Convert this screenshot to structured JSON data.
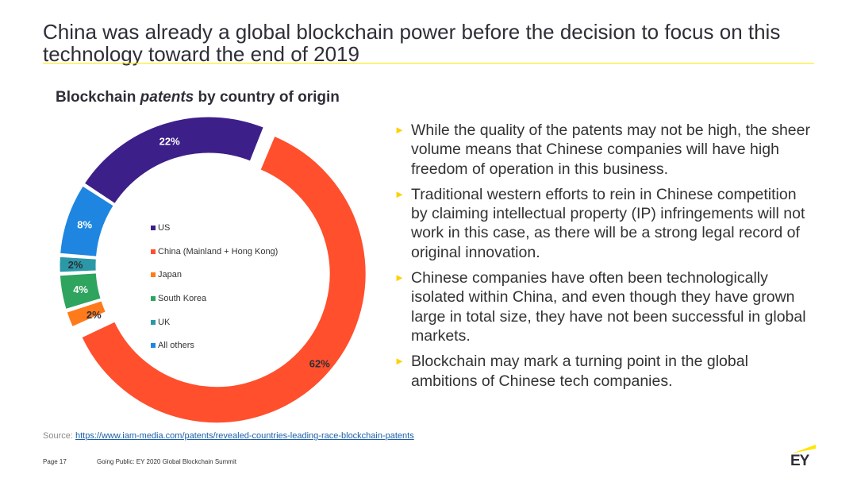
{
  "slide": {
    "title": "China was already a global blockchain power before the decision to focus on this technology toward the end of 2019",
    "subtitle_pre": "Blockchain ",
    "subtitle_em": "patents",
    "subtitle_post": " by country of origin"
  },
  "chart_data": {
    "type": "pie",
    "variant": "donut",
    "title": "Blockchain patents by country of origin",
    "legend_position": "center",
    "series": [
      {
        "name": "US",
        "value": 22,
        "label": "22%",
        "color": "#3d1f8a"
      },
      {
        "name": "China (Mainland + Hong Kong)",
        "value": 62,
        "label": "62%",
        "color": "#ff4f2d"
      },
      {
        "name": "Japan",
        "value": 2,
        "label": "2%",
        "color": "#ff7a1a"
      },
      {
        "name": "South Korea",
        "value": 4,
        "label": "4%",
        "color": "#2ea45f"
      },
      {
        "name": "UK",
        "value": 2,
        "label": "2%",
        "color": "#2b98a8"
      },
      {
        "name": "All others",
        "value": 8,
        "label": "8%",
        "color": "#1e86e0"
      }
    ]
  },
  "bullets": [
    "While the quality of the patents may not be high, the sheer volume means that Chinese companies will have high freedom of operation in this business.",
    "Traditional western efforts to rein in Chinese competition by claiming intellectual property (IP) infringements will not work in this case, as there will be a strong legal record of original innovation.",
    "Chinese companies have often been technologically isolated within China, and even though they have grown large in total size, they have not been successful in global markets.",
    "Blockchain may mark a turning point in the global ambitions of Chinese tech companies."
  ],
  "bullet_glyph": "►",
  "source": {
    "label": "Source: ",
    "url_text": "https://www.iam-media.com/patents/revealed-countries-leading-race-blockchain-patents"
  },
  "footer": {
    "page": "Page 17",
    "event": "Going Public: EY 2020 Global Blockchain Summit",
    "logo_text": "EY"
  },
  "colors": {
    "accent": "#ffe600",
    "title": "#2e2e38",
    "bullet": "#ffcf00"
  }
}
